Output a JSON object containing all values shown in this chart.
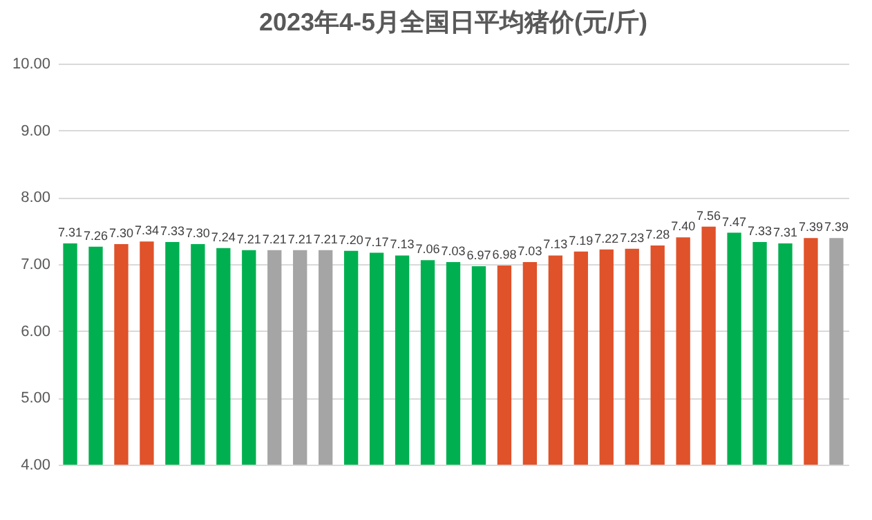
{
  "chart_data": {
    "type": "bar",
    "title": "2023年4-5月全国日平均猪价(元/斤)",
    "categories": [
      null,
      null,
      null,
      null,
      null,
      null,
      null,
      null,
      null,
      null,
      null,
      null,
      null,
      null,
      null,
      null,
      null,
      null,
      null,
      null,
      null,
      null,
      null,
      null,
      null,
      null,
      null,
      null,
      null,
      null,
      null
    ],
    "values": [
      7.31,
      7.26,
      7.3,
      7.34,
      7.33,
      7.3,
      7.24,
      7.21,
      7.21,
      7.21,
      7.21,
      7.2,
      7.17,
      7.13,
      7.06,
      7.03,
      6.97,
      6.98,
      7.03,
      7.13,
      7.19,
      7.22,
      7.23,
      7.28,
      7.4,
      7.56,
      7.47,
      7.33,
      7.31,
      7.39,
      7.39
    ],
    "value_labels": [
      "7.31",
      "7.26",
      "7.30",
      "7.34",
      "7.33",
      "7.30",
      "7.24",
      "7.21",
      "7.21",
      "7.21",
      "7.21",
      "7.20",
      "7.17",
      "7.13",
      "7.06",
      "7.03",
      "6.97",
      "6.98",
      "7.03",
      "7.13",
      "7.19",
      "7.22",
      "7.23",
      "7.28",
      "7.40",
      "7.56",
      "7.47",
      "7.33",
      "7.31",
      "7.39",
      "7.39"
    ],
    "colors": [
      "#00b050",
      "#00b050",
      "#e0522a",
      "#e0522a",
      "#00b050",
      "#00b050",
      "#00b050",
      "#00b050",
      "#a5a5a5",
      "#a5a5a5",
      "#a5a5a5",
      "#00b050",
      "#00b050",
      "#00b050",
      "#00b050",
      "#00b050",
      "#00b050",
      "#e0522a",
      "#e0522a",
      "#e0522a",
      "#e0522a",
      "#e0522a",
      "#e0522a",
      "#e0522a",
      "#e0522a",
      "#e0522a",
      "#00b050",
      "#00b050",
      "#00b050",
      "#e0522a",
      "#a5a5a5"
    ],
    "ylim": [
      4,
      10
    ],
    "yticks": [
      {
        "value": 4,
        "label": "4.00"
      },
      {
        "value": 5,
        "label": "5.00"
      },
      {
        "value": 6,
        "label": "6.00"
      },
      {
        "value": 7,
        "label": "7.00"
      },
      {
        "value": 8,
        "label": "8.00"
      },
      {
        "value": 9,
        "label": "9.00"
      },
      {
        "value": 10,
        "label": "10.00"
      }
    ],
    "grid": "y"
  }
}
